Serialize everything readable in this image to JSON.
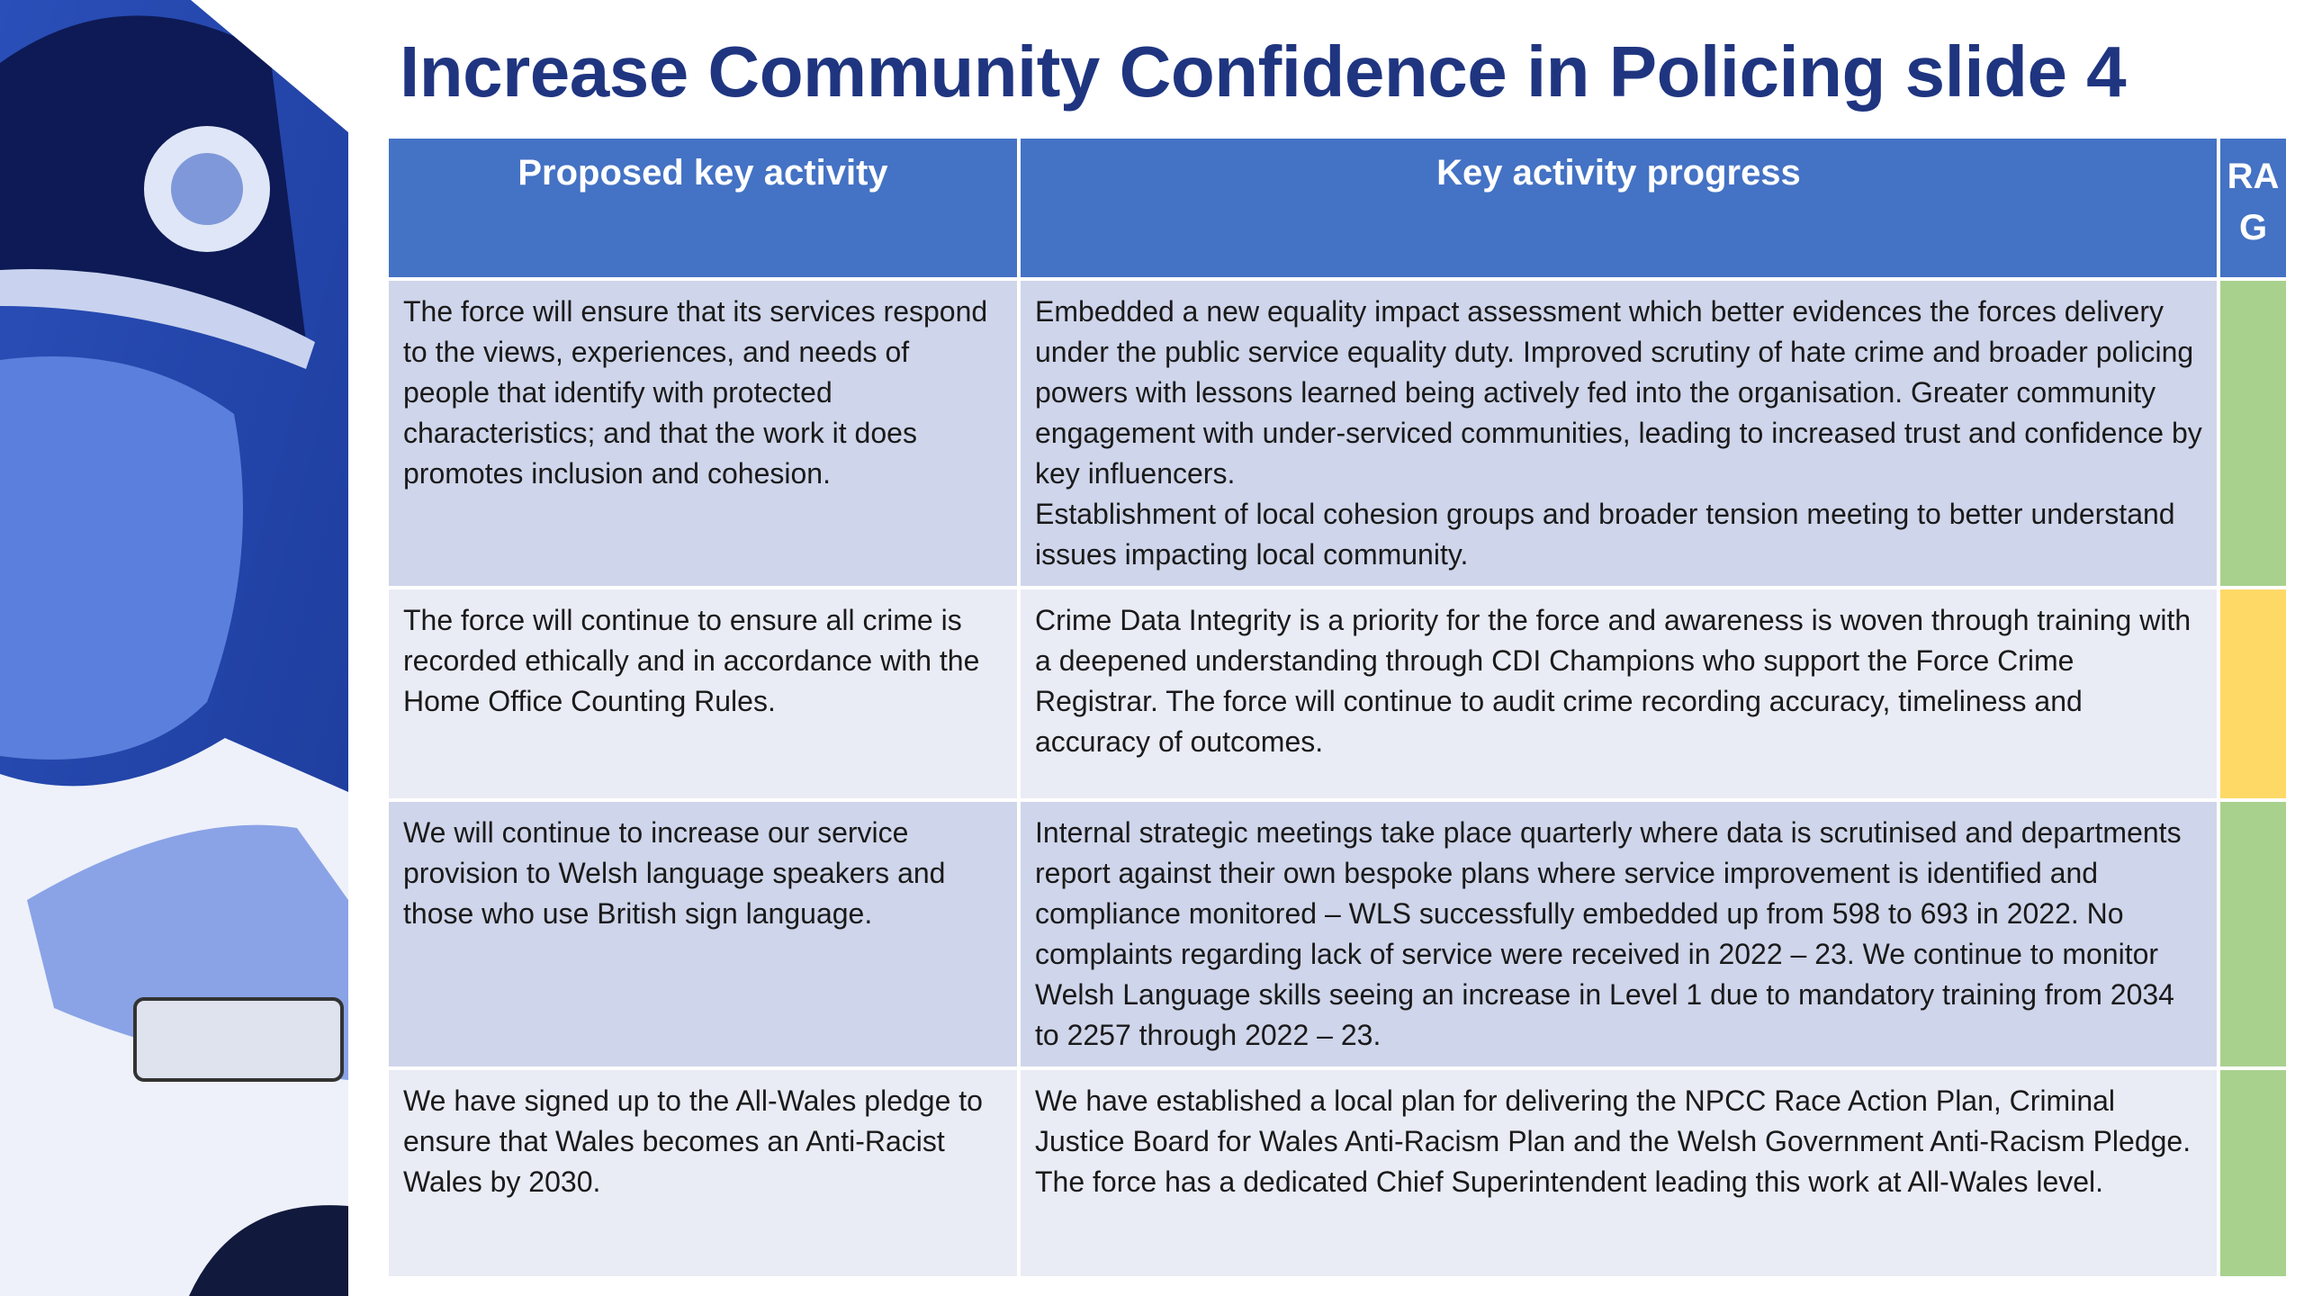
{
  "title": "Increase Community Confidence in Policing slide 4",
  "table": {
    "headers": [
      "Proposed key activity",
      "Key activity progress",
      "RAG"
    ],
    "rows": [
      {
        "activity": "The force will ensure that its services respond to the views, experiences, and needs of people that identify with protected characteristics; and that the work it does promotes inclusion and cohesion.",
        "progress": "Embedded a new equality impact assessment which better evidences the forces delivery under the public service equality duty. Improved scrutiny of hate crime and broader policing powers with lessons learned being actively fed into the organisation. Greater community engagement with under-serviced communities, leading to increased trust and confidence by key influencers.\nEstablishment of local cohesion groups and broader tension meeting to better understand issues impacting local community.",
        "color": "#a9d18e"
      },
      {
        "activity": "The force will continue to ensure all crime is recorded ethically and in accordance with the Home Office Counting Rules.",
        "progress": "Crime Data Integrity is a priority for the force and awareness is woven through training with a deepened understanding through CDI Champions who support the Force Crime Registrar. The force will continue to audit crime recording accuracy, timeliness and accuracy of outcomes.",
        "color": "#ffd966"
      },
      {
        "activity": "We will continue to increase our service provision to Welsh language speakers and those who use British sign language.",
        "progress": "Internal strategic meetings take place quarterly where data is scrutinised and departments report against their own bespoke plans where service improvement is identified and compliance monitored – WLS successfully embedded up from 598 to 693 in 2022. No complaints regarding lack of service were received in 2022 – 23. We continue to monitor Welsh Language skills seeing an increase in Level 1 due to mandatory training from 2034 to 2257 through 2022 – 23.",
        "color": "#a9d18e"
      },
      {
        "activity": "We have signed up to the All-Wales pledge to ensure that Wales becomes an Anti-Racist Wales by 2030.",
        "progress": "We have established a local plan for delivering the NPCC Race Action Plan, Criminal Justice Board for Wales Anti-Racism Plan and the Welsh Government Anti-Racism Pledge. The force has a dedicated Chief Superintendent leading this work at All-Wales level.",
        "color": "#a9d18e"
      }
    ]
  }
}
